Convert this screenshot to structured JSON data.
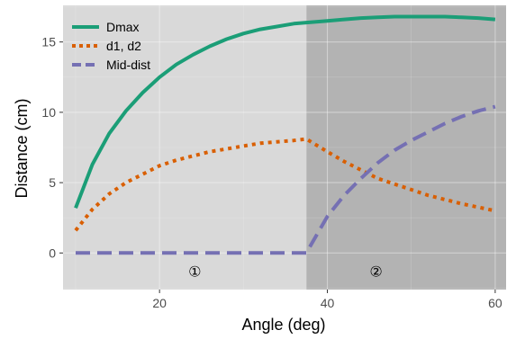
{
  "chart_data": {
    "type": "line",
    "xlabel": "Angle (deg)",
    "ylabel": "Distance (cm)",
    "xlim": [
      8.5,
      61.3
    ],
    "ylim": [
      -2.6,
      17.6
    ],
    "x_ticks": [
      20,
      40,
      60
    ],
    "y_ticks": [
      0,
      5,
      10,
      15
    ],
    "x_tick_labels": [
      "20",
      "40",
      "60"
    ],
    "y_tick_labels": [
      "0",
      "5",
      "10",
      "15"
    ],
    "grid": true,
    "legend": "top-left",
    "regions": [
      {
        "label": "①",
        "x_start": 8.5,
        "x_end": 37.5,
        "color": "#d9d9d9",
        "label_x": 24.2,
        "label_y": -1.3
      },
      {
        "label": "②",
        "x_start": 37.5,
        "x_end": 61.3,
        "color": "#b3b3b3",
        "label_x": 45.8,
        "label_y": -1.3
      }
    ],
    "series": [
      {
        "name": "Dmax",
        "color": "#1b9e77",
        "dash": "solid",
        "x": [
          10,
          12,
          14,
          16,
          18,
          20,
          22,
          24,
          26,
          28,
          30,
          32,
          34,
          36,
          38,
          40,
          42,
          44,
          46,
          48,
          50,
          52,
          54,
          56,
          58,
          60
        ],
        "y": [
          3.2,
          6.3,
          8.5,
          10.1,
          11.4,
          12.5,
          13.4,
          14.1,
          14.7,
          15.2,
          15.6,
          15.9,
          16.1,
          16.3,
          16.4,
          16.5,
          16.6,
          16.7,
          16.75,
          16.8,
          16.8,
          16.8,
          16.8,
          16.75,
          16.7,
          16.6
        ]
      },
      {
        "name": "d1, d2",
        "color": "#d95f02",
        "dash": "dotted",
        "x": [
          10,
          12,
          14,
          16,
          18,
          20,
          22,
          24,
          26,
          28,
          30,
          32,
          34,
          36,
          37.5,
          40,
          42,
          44,
          46,
          48,
          50,
          52,
          54,
          56,
          58,
          60
        ],
        "y": [
          1.6,
          3.1,
          4.2,
          5.0,
          5.6,
          6.2,
          6.6,
          6.9,
          7.2,
          7.4,
          7.6,
          7.8,
          7.9,
          8.0,
          8.1,
          7.2,
          6.5,
          5.9,
          5.3,
          4.9,
          4.5,
          4.1,
          3.8,
          3.5,
          3.25,
          3.0
        ]
      },
      {
        "name": "Mid-dist",
        "color": "#7570b3",
        "dash": "dashed",
        "x": [
          10,
          12,
          14,
          16,
          18,
          20,
          22,
          24,
          26,
          28,
          30,
          32,
          34,
          36,
          37.5,
          40,
          42,
          44,
          46,
          48,
          50,
          52,
          54,
          56,
          58,
          60
        ],
        "y": [
          0,
          0,
          0,
          0,
          0,
          0,
          0,
          0,
          0,
          0,
          0,
          0,
          0,
          0,
          0,
          2.6,
          4.1,
          5.3,
          6.4,
          7.3,
          8.0,
          8.6,
          9.2,
          9.7,
          10.1,
          10.4
        ]
      }
    ]
  }
}
